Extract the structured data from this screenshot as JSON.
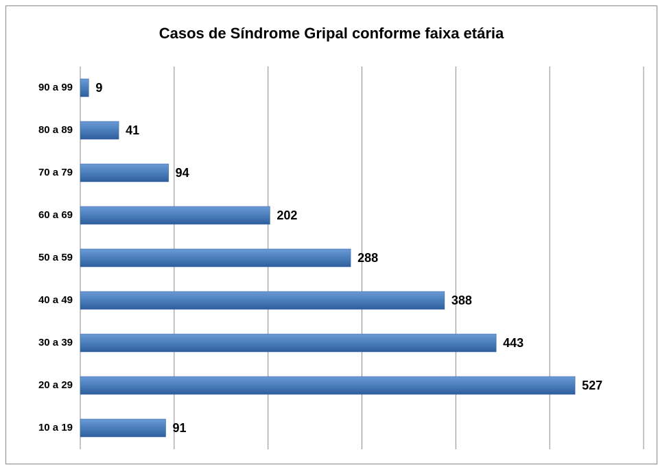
{
  "chart_data": {
    "type": "bar",
    "orientation": "horizontal",
    "title": "Casos de Síndrome Gripal conforme faixa etária",
    "categories": [
      "90 a 99",
      "80 a 89",
      "70 a 79",
      "60 a 69",
      "50 a 59",
      "40 a 49",
      "30 a 39",
      "20 a 29",
      "10 a 19"
    ],
    "values": [
      9,
      41,
      94,
      202,
      288,
      388,
      443,
      527,
      91
    ],
    "color": "#4a7ebb",
    "xlim": [
      0,
      600
    ],
    "xticks": [
      0,
      100,
      200,
      300,
      400,
      500,
      600
    ],
    "grid": true
  }
}
